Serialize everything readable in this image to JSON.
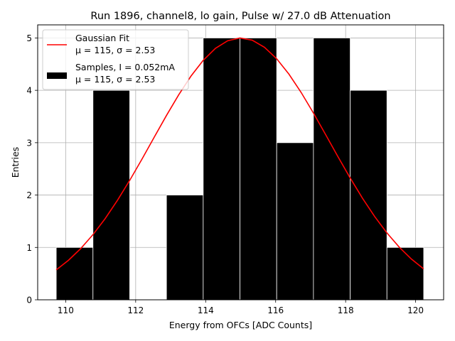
{
  "chart_data": {
    "type": "bar",
    "title": "Run 1896, channel8, lo gain, Pulse w/ 27.0 dB Attenuation",
    "xlabel": "Energy from OFCs [ADC Counts]",
    "ylabel": "Entries",
    "xlim": [
      109.2,
      120.8
    ],
    "ylim": [
      0,
      5.25
    ],
    "grid": true,
    "legend_placement": "top-left",
    "xticks": [
      110,
      112,
      114,
      116,
      118,
      120
    ],
    "yticks": [
      0,
      1,
      2,
      3,
      4,
      5
    ],
    "histogram": {
      "name": "Samples, I = 0.052mA",
      "stats_label": "μ = 115, σ = 2.53",
      "color": "#000000",
      "bin_edges": [
        109.73,
        110.78,
        111.83,
        112.88,
        113.93,
        114.98,
        116.03,
        117.08,
        118.13,
        119.18,
        120.23
      ],
      "counts": [
        1,
        4,
        0,
        2,
        5,
        5,
        3,
        5,
        4,
        1
      ]
    },
    "fit": {
      "name": "Gaussian Fit",
      "stats_label": "μ = 115, σ = 2.53",
      "color": "#ff0000",
      "mu": 115.0,
      "sigma": 2.53,
      "amplitude": 5.0,
      "x_range": [
        109.73,
        120.23
      ]
    }
  }
}
